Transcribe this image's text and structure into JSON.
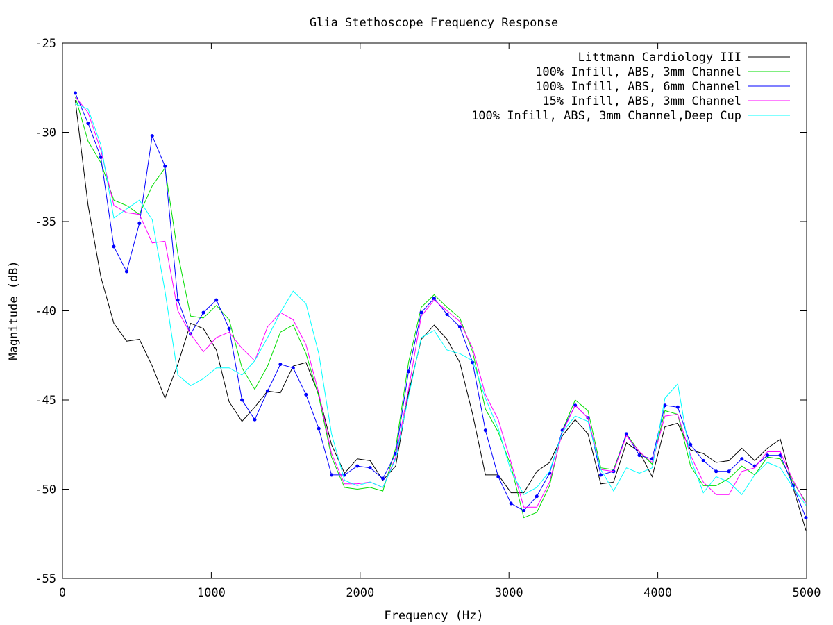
{
  "chart_data": {
    "type": "line",
    "title": "Glia Stethoscope Frequency Response",
    "xlabel": "Frequency (Hz)",
    "ylabel": "Magnitude (dB)",
    "xlim": [
      0,
      5000
    ],
    "ylim": [
      -55,
      -25
    ],
    "xticks": [
      0,
      1000,
      2000,
      3000,
      4000,
      5000
    ],
    "xtick_labels": [
      "0",
      "1000",
      "2000",
      "3000",
      "4000",
      "5000"
    ],
    "yticks": [
      -55,
      -50,
      -45,
      -40,
      -35,
      -30,
      -25
    ],
    "ytick_labels": [
      "-55",
      "-50",
      "-45",
      "-40",
      "-35",
      "-30",
      "-25"
    ],
    "grid": false,
    "legend_position": "top-right",
    "x": [
      86,
      172,
      258,
      345,
      431,
      517,
      603,
      689,
      775,
      861,
      947,
      1034,
      1120,
      1206,
      1292,
      1378,
      1464,
      1550,
      1636,
      1722,
      1808,
      1895,
      1981,
      2067,
      2153,
      2239,
      2325,
      2411,
      2497,
      2584,
      2670,
      2756,
      2842,
      2928,
      3014,
      3100,
      3187,
      3273,
      3359,
      3445,
      3531,
      3617,
      3703,
      3789,
      3876,
      3962,
      4048,
      4134,
      4220,
      4306,
      4392,
      4478,
      4565,
      4651,
      4737,
      4823,
      4909,
      4995
    ],
    "series": [
      {
        "name": "Littmann Cardiology III",
        "color": "#000000",
        "markers": false,
        "values": [
          -28.2,
          -34.1,
          -38.1,
          -40.7,
          -41.7,
          -41.6,
          -43.1,
          -44.9,
          -43.0,
          -40.7,
          -41.0,
          -42.2,
          -45.1,
          -46.2,
          -45.4,
          -44.5,
          -44.6,
          -43.1,
          -42.9,
          -44.7,
          -47.5,
          -49.1,
          -48.3,
          -48.4,
          -49.5,
          -48.7,
          -44.6,
          -41.6,
          -40.8,
          -41.6,
          -42.9,
          -45.8,
          -49.2,
          -49.2,
          -50.2,
          -50.2,
          -49.0,
          -48.5,
          -47.0,
          -46.1,
          -46.9,
          -49.7,
          -49.6,
          -47.4,
          -47.9,
          -49.3,
          -46.5,
          -46.3,
          -47.8,
          -48.0,
          -48.5,
          -48.4,
          -47.7,
          -48.4,
          -47.7,
          -47.2,
          -49.9,
          -52.3
        ]
      },
      {
        "name": "100% Infill, ABS, 3mm Channel",
        "color": "#00dd00",
        "markers": false,
        "values": [
          -28.0,
          -30.5,
          -31.7,
          -33.8,
          -34.1,
          -34.6,
          -33.0,
          -32.0,
          -36.8,
          -40.3,
          -40.4,
          -39.7,
          -40.5,
          -43.2,
          -44.4,
          -43.1,
          -41.2,
          -40.8,
          -42.4,
          -44.8,
          -48.2,
          -49.9,
          -50.0,
          -49.9,
          -50.1,
          -47.7,
          -42.9,
          -39.8,
          -39.1,
          -39.8,
          -40.4,
          -42.3,
          -45.5,
          -46.8,
          -48.7,
          -51.6,
          -51.3,
          -49.8,
          -46.7,
          -45.0,
          -45.6,
          -48.8,
          -48.9,
          -46.9,
          -47.9,
          -48.6,
          -45.6,
          -45.8,
          -48.7,
          -49.8,
          -49.8,
          -49.4,
          -48.7,
          -49.2,
          -48.2,
          -48.3,
          -49.6,
          -50.7
        ]
      },
      {
        "name": "100% Infill, ABS, 6mm Channel",
        "color": "#0000ff",
        "markers": true,
        "values": [
          -27.8,
          -29.5,
          -31.4,
          -36.4,
          -37.8,
          -35.1,
          -30.2,
          -31.9,
          -39.4,
          -41.3,
          -40.1,
          -39.4,
          -41.0,
          -45.0,
          -46.1,
          -44.5,
          -43.0,
          -43.2,
          -44.7,
          -46.6,
          -49.2,
          -49.2,
          -48.7,
          -48.8,
          -49.4,
          -48.0,
          -43.4,
          -40.1,
          -39.3,
          -40.2,
          -40.9,
          -42.9,
          -46.7,
          -49.3,
          -50.8,
          -51.2,
          -50.4,
          -49.1,
          -46.7,
          -45.3,
          -46.0,
          -49.2,
          -49.0,
          -46.9,
          -48.1,
          -48.3,
          -45.3,
          -45.4,
          -47.5,
          -48.4,
          -49.0,
          -49.0,
          -48.3,
          -48.7,
          -48.1,
          -48.1,
          -49.8,
          -51.6
        ]
      },
      {
        "name": "15% Infill, ABS, 3mm Channel",
        "color": "#ff00ff",
        "markers": false,
        "values": [
          -28.0,
          -28.9,
          -31.0,
          -34.1,
          -34.5,
          -34.6,
          -36.2,
          -36.1,
          -40.0,
          -41.3,
          -42.3,
          -41.5,
          -41.2,
          -42.1,
          -42.8,
          -40.9,
          -40.1,
          -40.5,
          -41.9,
          -44.6,
          -48.0,
          -49.7,
          -49.7,
          -49.6,
          -49.9,
          -48.2,
          -44.4,
          -40.3,
          -39.4,
          -40.0,
          -40.6,
          -42.1,
          -44.7,
          -46.1,
          -48.5,
          -51.0,
          -51.0,
          -49.6,
          -46.8,
          -45.3,
          -46.0,
          -48.9,
          -49.0,
          -47.0,
          -47.9,
          -48.5,
          -45.9,
          -45.8,
          -48.1,
          -49.6,
          -50.3,
          -50.3,
          -49.0,
          -48.8,
          -47.9,
          -47.9,
          -49.5,
          -50.8
        ]
      },
      {
        "name": "100% Infill, ABS, 3mm Channel,Deep Cup",
        "color": "#00ffff",
        "markers": false,
        "values": [
          -28.4,
          -28.7,
          -30.7,
          -34.8,
          -34.3,
          -33.8,
          -34.9,
          -38.9,
          -43.6,
          -44.2,
          -43.8,
          -43.2,
          -43.2,
          -43.6,
          -42.8,
          -41.5,
          -40.1,
          -38.9,
          -39.6,
          -42.4,
          -46.9,
          -49.5,
          -49.8,
          -49.6,
          -49.9,
          -48.3,
          -44.8,
          -41.5,
          -41.1,
          -42.2,
          -42.4,
          -42.8,
          -44.9,
          -46.6,
          -49.0,
          -50.3,
          -49.9,
          -49.0,
          -46.8,
          -45.9,
          -46.2,
          -48.9,
          -50.1,
          -48.8,
          -49.1,
          -48.8,
          -44.9,
          -44.1,
          -48.3,
          -50.2,
          -49.3,
          -49.6,
          -50.3,
          -49.2,
          -48.5,
          -48.8,
          -49.9,
          -50.9
        ]
      }
    ]
  }
}
